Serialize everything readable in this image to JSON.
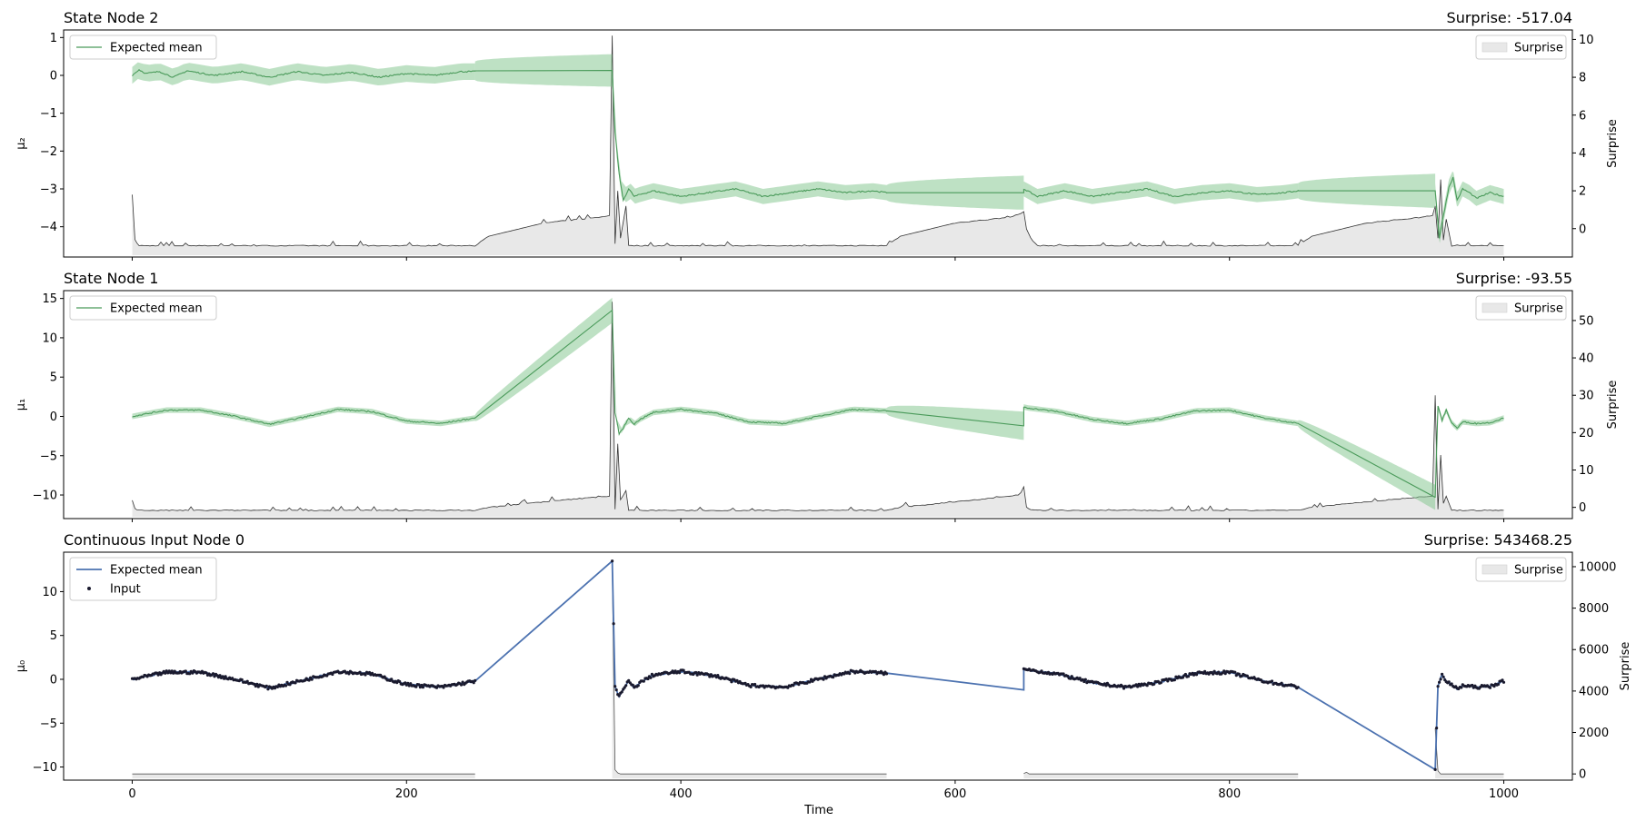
{
  "chart_data": [
    {
      "type": "line",
      "title": "State Node 2",
      "surprise_text": "Surprise: -517.04",
      "ylabel": "μ₂",
      "y2label": "Surprise",
      "xlim": [
        -50,
        1050
      ],
      "ylim": [
        -4.8,
        1.2
      ],
      "y2lim": [
        -1.5,
        10.5
      ],
      "yticks": [
        1,
        0,
        -1,
        -2,
        -3,
        -4
      ],
      "y2ticks": [
        10,
        8,
        6,
        4,
        2,
        0
      ],
      "xtick_labels_visible": false,
      "grid": false,
      "legend_left": [
        "Expected mean"
      ],
      "legend_right": [
        "Surprise"
      ],
      "colors": {
        "mean": "#4a9a5a",
        "band": "#7dc48a",
        "surprise_line": "#333333",
        "surprise_fill": "#e8e8e8"
      },
      "mean_pieces": [
        {
          "x": [
            0,
            5,
            10,
            20,
            30,
            40,
            60,
            80,
            100,
            120,
            140,
            160,
            180,
            200,
            220,
            240,
            250
          ],
          "y": [
            0.0,
            0.15,
            0.05,
            0.1,
            -0.05,
            0.12,
            0.0,
            0.1,
            -0.05,
            0.1,
            0.0,
            0.08,
            -0.05,
            0.05,
            0.0,
            0.1,
            0.1
          ]
        },
        {
          "x": [
            250,
            350
          ],
          "y": [
            0.12,
            0.13
          ]
        },
        {
          "x": [
            350,
            352,
            355,
            358,
            362,
            366,
            370,
            380,
            400,
            420,
            440,
            460,
            480,
            500,
            520,
            540,
            550
          ],
          "y": [
            0.13,
            -1.5,
            -2.6,
            -3.3,
            -3.0,
            -3.2,
            -3.15,
            -3.05,
            -3.2,
            -3.1,
            -3.0,
            -3.2,
            -3.1,
            -3.0,
            -3.1,
            -3.05,
            -3.1
          ]
        },
        {
          "x": [
            550,
            650
          ],
          "y": [
            -3.1,
            -3.1
          ]
        },
        {
          "x": [
            650,
            660,
            680,
            700,
            720,
            740,
            760,
            780,
            800,
            820,
            840,
            850
          ],
          "y": [
            -3.0,
            -3.2,
            -3.05,
            -3.2,
            -3.1,
            -3.0,
            -3.2,
            -3.1,
            -3.05,
            -3.15,
            -3.1,
            -3.05
          ]
        },
        {
          "x": [
            850,
            950
          ],
          "y": [
            -3.05,
            -3.05
          ]
        },
        {
          "x": [
            950,
            953,
            956,
            960,
            963,
            966,
            970,
            975,
            980,
            990,
            1000
          ],
          "y": [
            -3.05,
            -4.3,
            -3.7,
            -2.95,
            -2.7,
            -3.3,
            -3.0,
            -3.1,
            -3.25,
            -3.1,
            -3.2
          ]
        }
      ],
      "band_pieces": [
        {
          "x": [
            0,
            250
          ],
          "lower_width": 0.22,
          "upper_width": 0.22
        },
        {
          "x": [
            250,
            350
          ],
          "start_width": 0.25,
          "end_width": 0.43
        },
        {
          "x": [
            350,
            550
          ],
          "lower_width": 0.2,
          "upper_width": 0.2
        },
        {
          "x": [
            550,
            650
          ],
          "start_width": 0.2,
          "end_width": 0.45
        },
        {
          "x": [
            650,
            850
          ],
          "lower_width": 0.2,
          "upper_width": 0.2
        },
        {
          "x": [
            850,
            950
          ],
          "start_width": 0.2,
          "end_width": 0.45
        },
        {
          "x": [
            950,
            1000
          ],
          "lower_width": 0.2,
          "upper_width": 0.2
        }
      ],
      "surprise": {
        "x": [
          0,
          2,
          5,
          250,
          260,
          300,
          340,
          348,
          350,
          352,
          354,
          356,
          360,
          362,
          370,
          550,
          560,
          600,
          640,
          648,
          650,
          652,
          655,
          660,
          850,
          860,
          900,
          940,
          948,
          950,
          952,
          954,
          956,
          958,
          962,
          1000
        ],
        "y": [
          1.8,
          -0.6,
          -0.9,
          -0.9,
          -0.4,
          0.3,
          0.6,
          0.7,
          10.2,
          -0.8,
          2.0,
          -0.5,
          1.2,
          -0.9,
          -0.9,
          -0.9,
          -0.4,
          0.3,
          0.6,
          0.8,
          0.9,
          0.0,
          -0.5,
          -0.9,
          -0.9,
          -0.4,
          0.3,
          0.6,
          0.7,
          1.2,
          -0.5,
          2.6,
          -0.6,
          0.5,
          -0.9,
          -0.9
        ]
      }
    },
    {
      "type": "line",
      "title": "State Node 1",
      "surprise_text": "Surprise: -93.55",
      "ylabel": "μ₁",
      "y2label": "Surprise",
      "xlim": [
        -50,
        1050
      ],
      "ylim": [
        -13,
        16
      ],
      "y2lim": [
        -3,
        58
      ],
      "yticks": [
        15,
        10,
        5,
        0,
        -5,
        -10
      ],
      "y2ticks": [
        50,
        40,
        30,
        20,
        10,
        0
      ],
      "xtick_labels_visible": false,
      "grid": false,
      "legend_left": [
        "Expected mean"
      ],
      "legend_right": [
        "Surprise"
      ],
      "colors": {
        "mean": "#4a9a5a",
        "band": "#7dc48a",
        "surprise_line": "#333333",
        "surprise_fill": "#e8e8e8"
      },
      "mean_pieces": [
        {
          "x": [
            0,
            25,
            50,
            75,
            100,
            125,
            150,
            175,
            200,
            225,
            250
          ],
          "y": [
            0.0,
            0.8,
            0.8,
            0.0,
            -1.0,
            -0.1,
            0.9,
            0.6,
            -0.6,
            -0.9,
            -0.2
          ]
        },
        {
          "x": [
            250,
            350
          ],
          "y": [
            -0.2,
            13.5
          ]
        },
        {
          "x": [
            350,
            352,
            355,
            358,
            362,
            366,
            370,
            380,
            400,
            425,
            450,
            475,
            500,
            525,
            550
          ],
          "y": [
            13.5,
            0.5,
            -2.2,
            -1.5,
            -0.2,
            -1.0,
            -0.4,
            0.5,
            0.9,
            0.4,
            -0.7,
            -0.9,
            0.0,
            0.9,
            0.7
          ]
        },
        {
          "x": [
            550,
            650
          ],
          "y": [
            0.7,
            -1.2
          ]
        },
        {
          "x": [
            650,
            652,
            675,
            700,
            725,
            750,
            775,
            800,
            825,
            850
          ],
          "y": [
            1.2,
            1.1,
            0.6,
            -0.4,
            -0.9,
            -0.3,
            0.7,
            0.8,
            -0.2,
            -0.9
          ]
        },
        {
          "x": [
            850,
            950
          ],
          "y": [
            -0.9,
            -10.3
          ]
        },
        {
          "x": [
            950,
            952,
            955,
            958,
            962,
            966,
            970,
            980,
            990,
            1000
          ],
          "y": [
            -10.3,
            1.3,
            -0.5,
            0.8,
            -0.8,
            -1.5,
            -0.7,
            -0.9,
            -0.8,
            -0.2
          ]
        }
      ],
      "band_pieces": [
        {
          "x": [
            0,
            250
          ],
          "lower_width": 0.35,
          "upper_width": 0.35
        },
        {
          "x": [
            250,
            350
          ],
          "start_width": 0.4,
          "end_width": 1.6
        },
        {
          "x": [
            350,
            550
          ],
          "lower_width": 0.35,
          "upper_width": 0.35
        },
        {
          "x": [
            550,
            650
          ],
          "start_width": 0.4,
          "end_width": 1.8
        },
        {
          "x": [
            650,
            850
          ],
          "lower_width": 0.35,
          "upper_width": 0.35
        },
        {
          "x": [
            850,
            950
          ],
          "start_width": 0.4,
          "end_width": 1.6
        },
        {
          "x": [
            950,
            1000
          ],
          "lower_width": 0.35,
          "upper_width": 0.35
        }
      ],
      "surprise": {
        "x": [
          0,
          2,
          5,
          250,
          260,
          300,
          340,
          348,
          350,
          352,
          354,
          356,
          360,
          362,
          370,
          550,
          560,
          600,
          640,
          648,
          650,
          652,
          655,
          660,
          850,
          860,
          900,
          940,
          948,
          950,
          952,
          954,
          956,
          958,
          962,
          1000
        ],
        "y": [
          2.0,
          -0.3,
          -0.8,
          -0.8,
          0.0,
          1.5,
          2.8,
          3.0,
          55.0,
          -0.5,
          17.0,
          2.0,
          4.5,
          -0.8,
          -0.8,
          -0.8,
          0.0,
          1.5,
          3.0,
          3.5,
          5.5,
          0.0,
          -0.5,
          -0.8,
          -0.8,
          0.0,
          1.5,
          2.8,
          3.0,
          30.0,
          -0.5,
          14.0,
          1.0,
          3.0,
          -0.8,
          -0.8
        ]
      }
    },
    {
      "type": "line",
      "title": "Continuous Input Node 0",
      "surprise_text": "Surprise: 543468.25",
      "ylabel": "μ₀",
      "y2label": "Surprise",
      "xlabel": "Time",
      "xlim": [
        -50,
        1050
      ],
      "ylim": [
        -11.5,
        14.5
      ],
      "y2lim": [
        -300,
        10700
      ],
      "yticks": [
        10,
        5,
        0,
        -5,
        -10
      ],
      "y2ticks": [
        10000,
        8000,
        6000,
        4000,
        2000,
        0
      ],
      "xticks": [
        0,
        200,
        400,
        600,
        800,
        1000
      ],
      "xtick_labels_visible": true,
      "grid": false,
      "legend_left": [
        "Expected mean",
        "Input"
      ],
      "legend_right": [
        "Surprise"
      ],
      "colors": {
        "mean": "#4c72b0",
        "input": "#1a1a2e",
        "surprise_line": "#555555",
        "surprise_fill": "#e8e8e8"
      },
      "mean_pieces": [
        {
          "x": [
            0,
            25,
            50,
            75,
            100,
            125,
            150,
            175,
            200,
            225,
            250
          ],
          "y": [
            0.0,
            0.8,
            0.8,
            0.0,
            -1.0,
            -0.1,
            0.9,
            0.6,
            -0.6,
            -0.9,
            -0.2
          ]
        },
        {
          "x": [
            250,
            350
          ],
          "y": [
            -0.2,
            13.5
          ]
        },
        {
          "x": [
            350,
            352,
            355,
            358,
            362,
            366,
            370,
            380,
            400,
            425,
            450,
            475,
            500,
            525,
            550
          ],
          "y": [
            13.5,
            -0.8,
            -2.0,
            -1.2,
            -0.2,
            -1.0,
            -0.4,
            0.5,
            0.9,
            0.4,
            -0.7,
            -0.9,
            0.0,
            0.9,
            0.7
          ]
        },
        {
          "x": [
            550,
            650
          ],
          "y": [
            0.7,
            -1.2
          ]
        },
        {
          "x": [
            650,
            652,
            675,
            700,
            725,
            750,
            775,
            800,
            825,
            850
          ],
          "y": [
            1.2,
            1.1,
            0.6,
            -0.4,
            -0.9,
            -0.3,
            0.7,
            0.8,
            -0.2,
            -0.9
          ]
        },
        {
          "x": [
            850,
            950
          ],
          "y": [
            -0.9,
            -10.3
          ]
        },
        {
          "x": [
            950,
            952,
            955,
            958,
            962,
            966,
            970,
            980,
            990,
            1000
          ],
          "y": [
            -10.3,
            -0.8,
            0.6,
            -0.3,
            -0.6,
            -1.1,
            -0.7,
            -0.9,
            -0.8,
            -0.2
          ]
        }
      ],
      "input_ranges": [
        [
          0,
          250
        ],
        [
          350,
          550
        ],
        [
          650,
          850
        ],
        [
          950,
          1000
        ]
      ],
      "surprise": {
        "x": [
          0,
          250,
          350,
          352,
          354,
          356,
          360,
          550,
          650,
          652,
          654,
          656,
          850,
          950,
          952,
          954,
          956,
          1000
        ],
        "y": [
          0,
          0,
          10200,
          200,
          50,
          0,
          0,
          0,
          20,
          80,
          0,
          0,
          0,
          2200,
          150,
          0,
          0,
          0
        ]
      },
      "surprise_gaps": [
        [
          250,
          350
        ],
        [
          550,
          650
        ],
        [
          850,
          950
        ]
      ]
    }
  ]
}
